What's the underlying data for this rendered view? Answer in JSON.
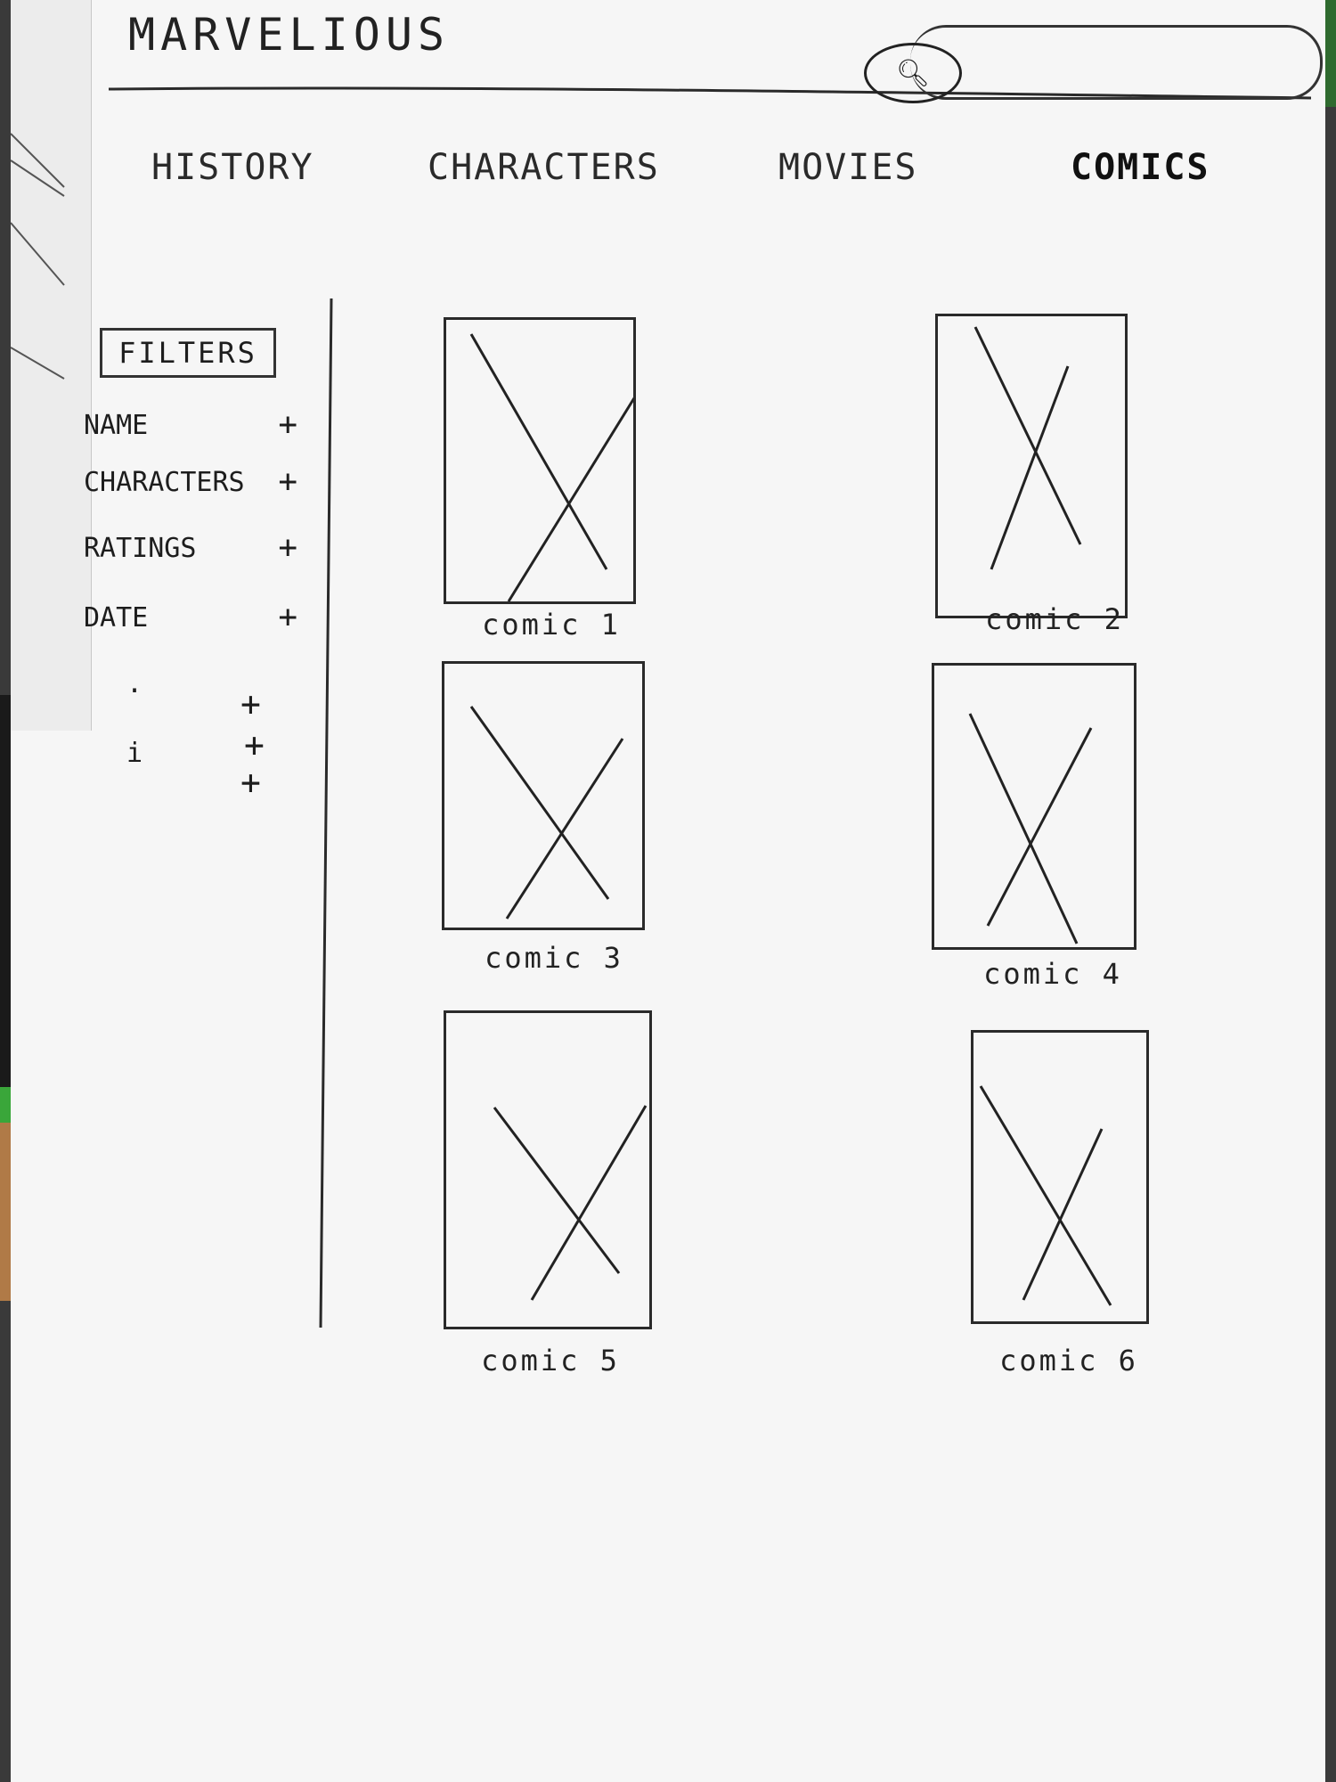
{
  "header": {
    "logo": "MARVELIOUS",
    "search": {
      "icon": "search-icon",
      "placeholder": ""
    }
  },
  "nav": {
    "items": [
      {
        "label": "HISTORY"
      },
      {
        "label": "CHARACTERS"
      },
      {
        "label": "MOVIES"
      },
      {
        "label": "COMICS",
        "active": true
      }
    ]
  },
  "filters": {
    "title": "FILTERS",
    "items": [
      {
        "label": "NAME",
        "toggle": "+"
      },
      {
        "label": "CHARACTERS",
        "toggle": "+"
      },
      {
        "label": "RATINGS",
        "toggle": "+"
      },
      {
        "label": "DATE",
        "toggle": "+"
      }
    ],
    "more": [
      {
        "mark": ".",
        "toggle": "+"
      },
      {
        "mark": "i",
        "toggle": "+"
      },
      {
        "mark": "",
        "toggle": "+"
      }
    ]
  },
  "comics": [
    {
      "title": "comic 1",
      "image_icon": "image-placeholder-icon"
    },
    {
      "title": "comic 2",
      "image_icon": "image-placeholder-icon"
    },
    {
      "title": "comic 3",
      "image_icon": "image-placeholder-icon"
    },
    {
      "title": "comic 4",
      "image_icon": "image-placeholder-icon"
    },
    {
      "title": "comic 5",
      "image_icon": "image-placeholder-icon"
    },
    {
      "title": "comic 6",
      "image_icon": "image-placeholder-icon"
    }
  ],
  "colors": {
    "paper": "#f6f6f6",
    "ink": "#222222"
  }
}
